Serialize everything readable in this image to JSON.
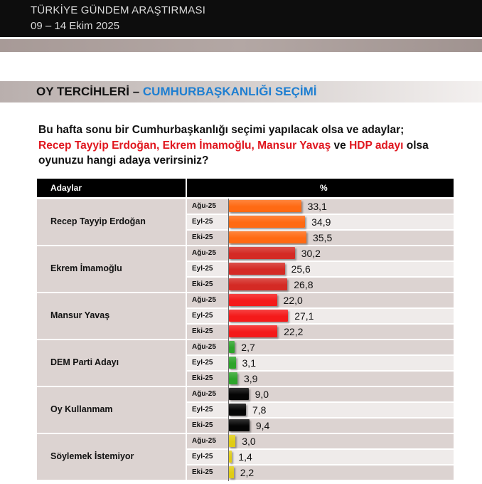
{
  "header": {
    "org": "TÜRKİYE GÜNDEM ARAŞTIRMASI",
    "dates": "09 – 14 Ekim 2025"
  },
  "section": {
    "title_prefix": "OY TERCİHLERİ – ",
    "title_highlight": "CUMHURBAŞKANLIĞI SEÇİMİ"
  },
  "question": {
    "line1": "Bu hafta sonu bir Cumhurbaşkanlığı seçimi yapılacak olsa ve adaylar;",
    "line2_red": "Recep Tayyip Erdoğan, Ekrem İmamoğlu, Mansur Yavaş",
    "line2_mid": " ve ",
    "line2_red2": "HDP adayı",
    "line2_end": " olsa",
    "line3": "oyunuzu hangi adaya verirsiniz?"
  },
  "table": {
    "col_left": "Adaylar",
    "col_right": "%"
  },
  "chart_data": {
    "type": "bar",
    "orientation": "horizontal",
    "periods": [
      "Ağu-25",
      "Eyl-25",
      "Eki-25"
    ],
    "groups": [
      {
        "name": "Recep Tayyip Erdoğan",
        "color": "#ff6a13",
        "values": [
          33.1,
          34.9,
          35.5
        ],
        "labels": [
          "33,1",
          "34,9",
          "35,5"
        ]
      },
      {
        "name": "Ekrem İmamoğlu",
        "color": "#d42a24",
        "values": [
          30.2,
          25.6,
          26.8
        ],
        "labels": [
          "30,2",
          "25,6",
          "26,8"
        ]
      },
      {
        "name": "Mansur Yavaş",
        "color": "#f41a1a",
        "values": [
          22.0,
          27.1,
          22.2
        ],
        "labels": [
          "22,0",
          "27,1",
          "22,2"
        ]
      },
      {
        "name": "DEM Parti Adayı",
        "color": "#2da42a",
        "values": [
          2.7,
          3.1,
          3.9
        ],
        "labels": [
          "2,7",
          "3,1",
          "3,9"
        ]
      },
      {
        "name": "Oy Kullanmam",
        "color": "#050505",
        "values": [
          9.0,
          7.8,
          9.4
        ],
        "labels": [
          "9,0",
          "7,8",
          "9,4"
        ]
      },
      {
        "name": "Söylemek İstemiyor",
        "color": "#e0cc14",
        "values": [
          3.0,
          1.4,
          2.2
        ],
        "labels": [
          "3,0",
          "1,4",
          "2,2"
        ]
      }
    ]
  }
}
